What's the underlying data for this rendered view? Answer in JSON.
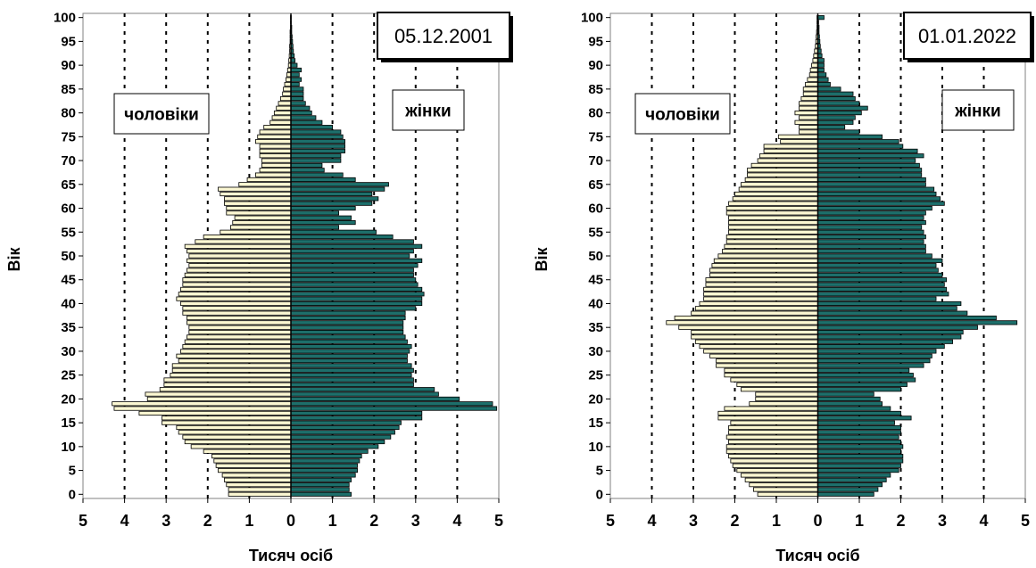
{
  "colors": {
    "men": "#fbf7d2",
    "women": "#1d6f6b",
    "bar_stroke": "#000000",
    "grid": "#000000"
  },
  "chart_data": [
    {
      "type": "bar",
      "orientation": "horizontal-population-pyramid",
      "date_label": "05.12.2001",
      "ylabel": "Вік",
      "xlabel": "Тисяч осіб",
      "xlim": [
        -5,
        5
      ],
      "ylim": [
        0,
        100
      ],
      "x_tick_labels": [
        "5",
        "4",
        "3",
        "2",
        "1",
        "0",
        "1",
        "2",
        "3",
        "4",
        "5"
      ],
      "y_tick_labels": [
        "0",
        "5",
        "10",
        "15",
        "20",
        "25",
        "30",
        "35",
        "40",
        "45",
        "50",
        "55",
        "60",
        "65",
        "70",
        "75",
        "80",
        "85",
        "90",
        "95",
        "100"
      ],
      "grid": "vertical dotted lines at every 1",
      "legend_men": "чоловіки",
      "legend_women": "жінки",
      "ages": [
        0,
        1,
        2,
        3,
        4,
        5,
        6,
        7,
        8,
        9,
        10,
        11,
        12,
        13,
        14,
        15,
        16,
        17,
        18,
        19,
        20,
        21,
        22,
        23,
        24,
        25,
        26,
        27,
        28,
        29,
        30,
        31,
        32,
        33,
        34,
        35,
        36,
        37,
        38,
        39,
        40,
        41,
        42,
        43,
        44,
        45,
        46,
        47,
        48,
        49,
        50,
        51,
        52,
        53,
        54,
        55,
        56,
        57,
        58,
        59,
        60,
        61,
        62,
        63,
        64,
        65,
        66,
        67,
        68,
        69,
        70,
        71,
        72,
        73,
        74,
        75,
        76,
        77,
        78,
        79,
        80,
        81,
        82,
        83,
        84,
        85,
        86,
        87,
        88,
        89,
        90,
        91,
        92,
        93,
        94,
        95,
        96,
        97,
        98,
        99,
        100
      ],
      "series": [
        {
          "name": "чоловіки",
          "values": [
            1.5,
            1.5,
            1.55,
            1.6,
            1.65,
            1.75,
            1.8,
            1.85,
            1.9,
            2.1,
            2.4,
            2.55,
            2.6,
            2.7,
            2.75,
            3.1,
            3.1,
            3.65,
            4.25,
            4.3,
            3.45,
            3.5,
            3.15,
            3.05,
            3.05,
            2.9,
            2.85,
            2.85,
            2.7,
            2.75,
            2.65,
            2.6,
            2.55,
            2.5,
            2.45,
            2.45,
            2.5,
            2.5,
            2.6,
            2.6,
            2.65,
            2.75,
            2.7,
            2.65,
            2.6,
            2.6,
            2.55,
            2.5,
            2.45,
            2.5,
            2.45,
            2.5,
            2.55,
            2.3,
            2.1,
            1.7,
            1.45,
            1.4,
            1.35,
            1.55,
            1.55,
            1.6,
            1.6,
            1.7,
            1.75,
            1.25,
            1.05,
            0.85,
            0.75,
            0.7,
            0.7,
            0.75,
            0.75,
            0.75,
            0.85,
            0.8,
            0.75,
            0.65,
            0.5,
            0.45,
            0.4,
            0.35,
            0.3,
            0.25,
            0.2,
            0.18,
            0.15,
            0.12,
            0.1,
            0.08,
            0.06,
            0.05,
            0.04,
            0.03,
            0.03,
            0.02,
            0.02,
            0.02,
            0.01,
            0.01,
            0.01
          ]
        },
        {
          "name": "жінки",
          "values": [
            1.45,
            1.4,
            1.4,
            1.45,
            1.55,
            1.6,
            1.6,
            1.65,
            1.7,
            1.85,
            2.1,
            2.25,
            2.4,
            2.5,
            2.6,
            2.65,
            3.15,
            3.15,
            4.95,
            4.85,
            4.05,
            3.55,
            3.45,
            2.95,
            2.95,
            2.9,
            2.95,
            2.9,
            2.8,
            2.8,
            2.85,
            2.9,
            2.8,
            2.75,
            2.7,
            2.7,
            2.7,
            2.75,
            2.75,
            3.0,
            3.15,
            3.15,
            3.2,
            3.15,
            3.05,
            3.0,
            2.95,
            2.95,
            3.05,
            3.15,
            2.85,
            2.95,
            3.15,
            2.95,
            2.45,
            2.05,
            1.15,
            1.55,
            1.45,
            1.15,
            1.55,
            1.95,
            2.1,
            1.95,
            2.25,
            2.35,
            1.55,
            1.25,
            0.8,
            0.75,
            1.2,
            1.2,
            1.3,
            1.3,
            1.3,
            1.25,
            1.2,
            1.0,
            0.75,
            0.6,
            0.5,
            0.45,
            0.35,
            0.3,
            0.3,
            0.3,
            0.2,
            0.25,
            0.2,
            0.25,
            0.15,
            0.1,
            0.08,
            0.06,
            0.05,
            0.04,
            0.03,
            0.02,
            0.02,
            0.01,
            0.01
          ]
        }
      ]
    },
    {
      "type": "bar",
      "orientation": "horizontal-population-pyramid",
      "date_label": "01.01.2022",
      "ylabel": "Вік",
      "xlabel": "Тисяч осіб",
      "xlim": [
        -5,
        5
      ],
      "ylim": [
        0,
        100
      ],
      "x_tick_labels": [
        "5",
        "4",
        "3",
        "2",
        "1",
        "0",
        "1",
        "2",
        "3",
        "4",
        "5"
      ],
      "y_tick_labels": [
        "0",
        "5",
        "10",
        "15",
        "20",
        "25",
        "30",
        "35",
        "40",
        "45",
        "50",
        "55",
        "60",
        "65",
        "70",
        "75",
        "80",
        "85",
        "90",
        "95",
        "100"
      ],
      "grid": "vertical dotted lines at every 1",
      "legend_men": "чоловіки",
      "legend_women": "жінки",
      "ages": [
        0,
        1,
        2,
        3,
        4,
        5,
        6,
        7,
        8,
        9,
        10,
        11,
        12,
        13,
        14,
        15,
        16,
        17,
        18,
        19,
        20,
        21,
        22,
        23,
        24,
        25,
        26,
        27,
        28,
        29,
        30,
        31,
        32,
        33,
        34,
        35,
        36,
        37,
        38,
        39,
        40,
        41,
        42,
        43,
        44,
        45,
        46,
        47,
        48,
        49,
        50,
        51,
        52,
        53,
        54,
        55,
        56,
        57,
        58,
        59,
        60,
        61,
        62,
        63,
        64,
        65,
        66,
        67,
        68,
        69,
        70,
        71,
        72,
        73,
        74,
        75,
        76,
        77,
        78,
        79,
        80,
        81,
        82,
        83,
        84,
        85,
        86,
        87,
        88,
        89,
        90,
        91,
        92,
        93,
        94,
        95,
        96,
        97,
        98,
        99,
        100
      ],
      "series": [
        {
          "name": "чоловіки",
          "values": [
            1.45,
            1.55,
            1.65,
            1.75,
            1.85,
            1.95,
            2.05,
            2.1,
            2.15,
            2.2,
            2.2,
            2.15,
            2.2,
            2.15,
            2.15,
            2.1,
            2.4,
            2.4,
            2.25,
            1.65,
            1.5,
            1.5,
            1.85,
            1.95,
            2.1,
            2.25,
            2.25,
            2.45,
            2.45,
            2.6,
            2.75,
            2.85,
            2.95,
            3.05,
            3.05,
            3.35,
            3.65,
            3.45,
            3.05,
            2.95,
            2.85,
            2.75,
            2.75,
            2.75,
            2.7,
            2.7,
            2.6,
            2.6,
            2.55,
            2.5,
            2.4,
            2.3,
            2.25,
            2.2,
            2.2,
            2.15,
            2.15,
            2.15,
            2.15,
            2.2,
            2.2,
            2.15,
            2.05,
            2.0,
            1.9,
            1.85,
            1.75,
            1.7,
            1.7,
            1.6,
            1.45,
            1.4,
            1.3,
            1.3,
            0.9,
            0.95,
            0.45,
            0.45,
            0.55,
            0.45,
            0.55,
            0.45,
            0.45,
            0.4,
            0.35,
            0.35,
            0.3,
            0.25,
            0.2,
            0.18,
            0.15,
            0.12,
            0.1,
            0.08,
            0.06,
            0.05,
            0.04,
            0.03,
            0.02,
            0.02,
            0.02
          ]
        },
        {
          "name": "жінки",
          "values": [
            1.35,
            1.45,
            1.55,
            1.65,
            1.75,
            1.95,
            2.0,
            2.05,
            2.05,
            2.0,
            2.05,
            2.0,
            1.95,
            2.0,
            2.0,
            1.85,
            2.25,
            2.0,
            1.75,
            1.55,
            1.5,
            1.35,
            2.0,
            2.15,
            2.35,
            2.3,
            2.2,
            2.55,
            2.7,
            2.75,
            2.85,
            3.05,
            3.25,
            3.45,
            3.5,
            3.85,
            4.8,
            4.3,
            3.6,
            3.35,
            3.45,
            2.85,
            3.15,
            3.1,
            3.05,
            3.1,
            3.0,
            2.9,
            2.85,
            3.0,
            2.75,
            2.6,
            2.6,
            2.55,
            2.6,
            2.55,
            2.5,
            2.6,
            2.55,
            2.6,
            2.75,
            3.05,
            2.95,
            2.85,
            2.8,
            2.6,
            2.6,
            2.5,
            2.5,
            2.45,
            2.35,
            2.55,
            2.4,
            2.05,
            1.95,
            1.55,
            1.0,
            0.65,
            0.85,
            0.9,
            1.05,
            1.2,
            1.0,
            0.9,
            0.85,
            0.55,
            0.3,
            0.25,
            0.2,
            0.15,
            0.15,
            0.15,
            0.1,
            0.08,
            0.06,
            0.05,
            0.04,
            0.03,
            0.03,
            0.02,
            0.15
          ]
        }
      ]
    }
  ]
}
